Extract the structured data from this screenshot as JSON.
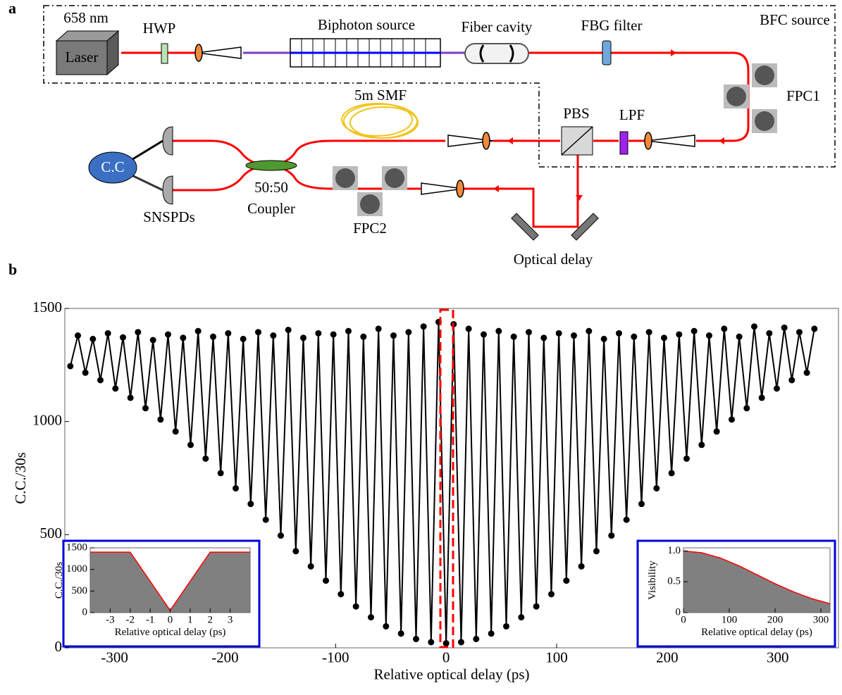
{
  "diagram": {
    "panel_labels": [
      "a",
      "b"
    ],
    "labels": [
      "658 nm",
      "Laser",
      "HWP",
      "Biphoton source",
      "Fiber cavity",
      "FBG filter",
      "BFC source",
      "FPC1",
      "5m SMF",
      "PBS",
      "LPF",
      "C.C",
      "SNSPDs",
      "50:50",
      "Coupler",
      "FPC2",
      "Optical delay"
    ]
  },
  "chart_data": [
    {
      "type": "line",
      "color": "#000000",
      "x": [
        -340,
        -333.2,
        -326.4,
        -319.6,
        -312.8,
        -306,
        -299.2,
        -292.4,
        -285.6,
        -278.8,
        -272,
        -265.2,
        -258.4,
        -251.6,
        -244.8,
        -238,
        -231.2,
        -224.4,
        -217.6,
        -210.8,
        -204,
        -197.2,
        -190.4,
        -183.6,
        -176.8,
        -170,
        -163.2,
        -156.4,
        -149.6,
        -142.8,
        -136,
        -129.2,
        -122.4,
        -115.6,
        -108.8,
        -102,
        -95.2,
        -88.4,
        -81.6,
        -74.8,
        -68,
        -61.2,
        -54.4,
        -47.6,
        -40.8,
        -34,
        -27.2,
        -20.4,
        -13.6,
        -6.8,
        0,
        6.8,
        13.6,
        20.4,
        27.2,
        34,
        40.8,
        47.6,
        54.4,
        61.2,
        68,
        74.8,
        81.6,
        88.4,
        95.2,
        102,
        108.8,
        115.6,
        122.4,
        129.2,
        136,
        142.8,
        149.6,
        156.4,
        163.2,
        170,
        176.8,
        183.6,
        190.4,
        197.2,
        204,
        210.8,
        217.6,
        224.4,
        231.2,
        238,
        244.8,
        251.6,
        258.4,
        265.2,
        272,
        278.8,
        285.6,
        292.4,
        299.2,
        306,
        312.8,
        319.6,
        326.4,
        333.2
      ],
      "values": [
        1245,
        1380,
        1216,
        1365,
        1183,
        1390,
        1146,
        1372,
        1105,
        1395,
        1059,
        1360,
        1009,
        1385,
        956,
        1370,
        897,
        1400,
        836,
        1375,
        772,
        1390,
        705,
        1365,
        636,
        1395,
        566,
        1380,
        496,
        1405,
        427,
        1370,
        360,
        1390,
        297,
        1385,
        237,
        1400,
        183,
        1375,
        135,
        1410,
        95,
        1380,
        63,
        1395,
        39,
        1420,
        25,
        1440,
        20,
        1430,
        25,
        1410,
        39,
        1385,
        63,
        1400,
        95,
        1375,
        135,
        1395,
        183,
        1370,
        237,
        1390,
        297,
        1380,
        360,
        1400,
        427,
        1365,
        496,
        1390,
        566,
        1375,
        636,
        1395,
        705,
        1370,
        772,
        1385,
        836,
        1400,
        897,
        1380,
        956,
        1410,
        1009,
        1375,
        1059,
        1420,
        1105,
        1390,
        1146,
        1415,
        1183,
        1395,
        1216,
        1410
      ],
      "xlim": [
        -345,
        355
      ],
      "ylim": [
        0,
        1500
      ],
      "xticks": [
        -300,
        -200,
        -100,
        0,
        100,
        200,
        300
      ],
      "yticks": [
        0,
        500,
        1000,
        1500
      ],
      "xlabel": "Relative optical delay (ps)",
      "ylabel": "C.C./30s"
    },
    {
      "type": "area",
      "color": "#808080",
      "line_color": "#ff0000",
      "x": [
        -4,
        -2,
        0,
        2,
        4
      ],
      "values": [
        1400,
        1400,
        50,
        1400,
        1400
      ],
      "xlim": [
        -4,
        4
      ],
      "ylim": [
        0,
        1500
      ],
      "xticks": [
        -3,
        -2,
        -1,
        0,
        1,
        2,
        3
      ],
      "yticks": [
        0,
        500,
        1000,
        1500
      ],
      "xlabel": "Relative optical delay (ps)",
      "ylabel": "C.C./30s"
    },
    {
      "type": "area",
      "color": "#808080",
      "line_color": "#ff0000",
      "x": [
        0,
        40,
        80,
        120,
        160,
        200,
        240,
        280,
        320
      ],
      "values": [
        1,
        0.97,
        0.886,
        0.762,
        0.616,
        0.469,
        0.337,
        0.227,
        0.144
      ],
      "xlim": [
        0,
        320
      ],
      "ylim": [
        0,
        1.05
      ],
      "xticks": [
        0,
        100,
        200,
        300
      ],
      "yticks": [
        0,
        0.5,
        {
          "value": 1,
          "label": "1.0"
        }
      ],
      "xlabel": "Relative optical delay (ps)",
      "ylabel": "Visibility"
    }
  ]
}
